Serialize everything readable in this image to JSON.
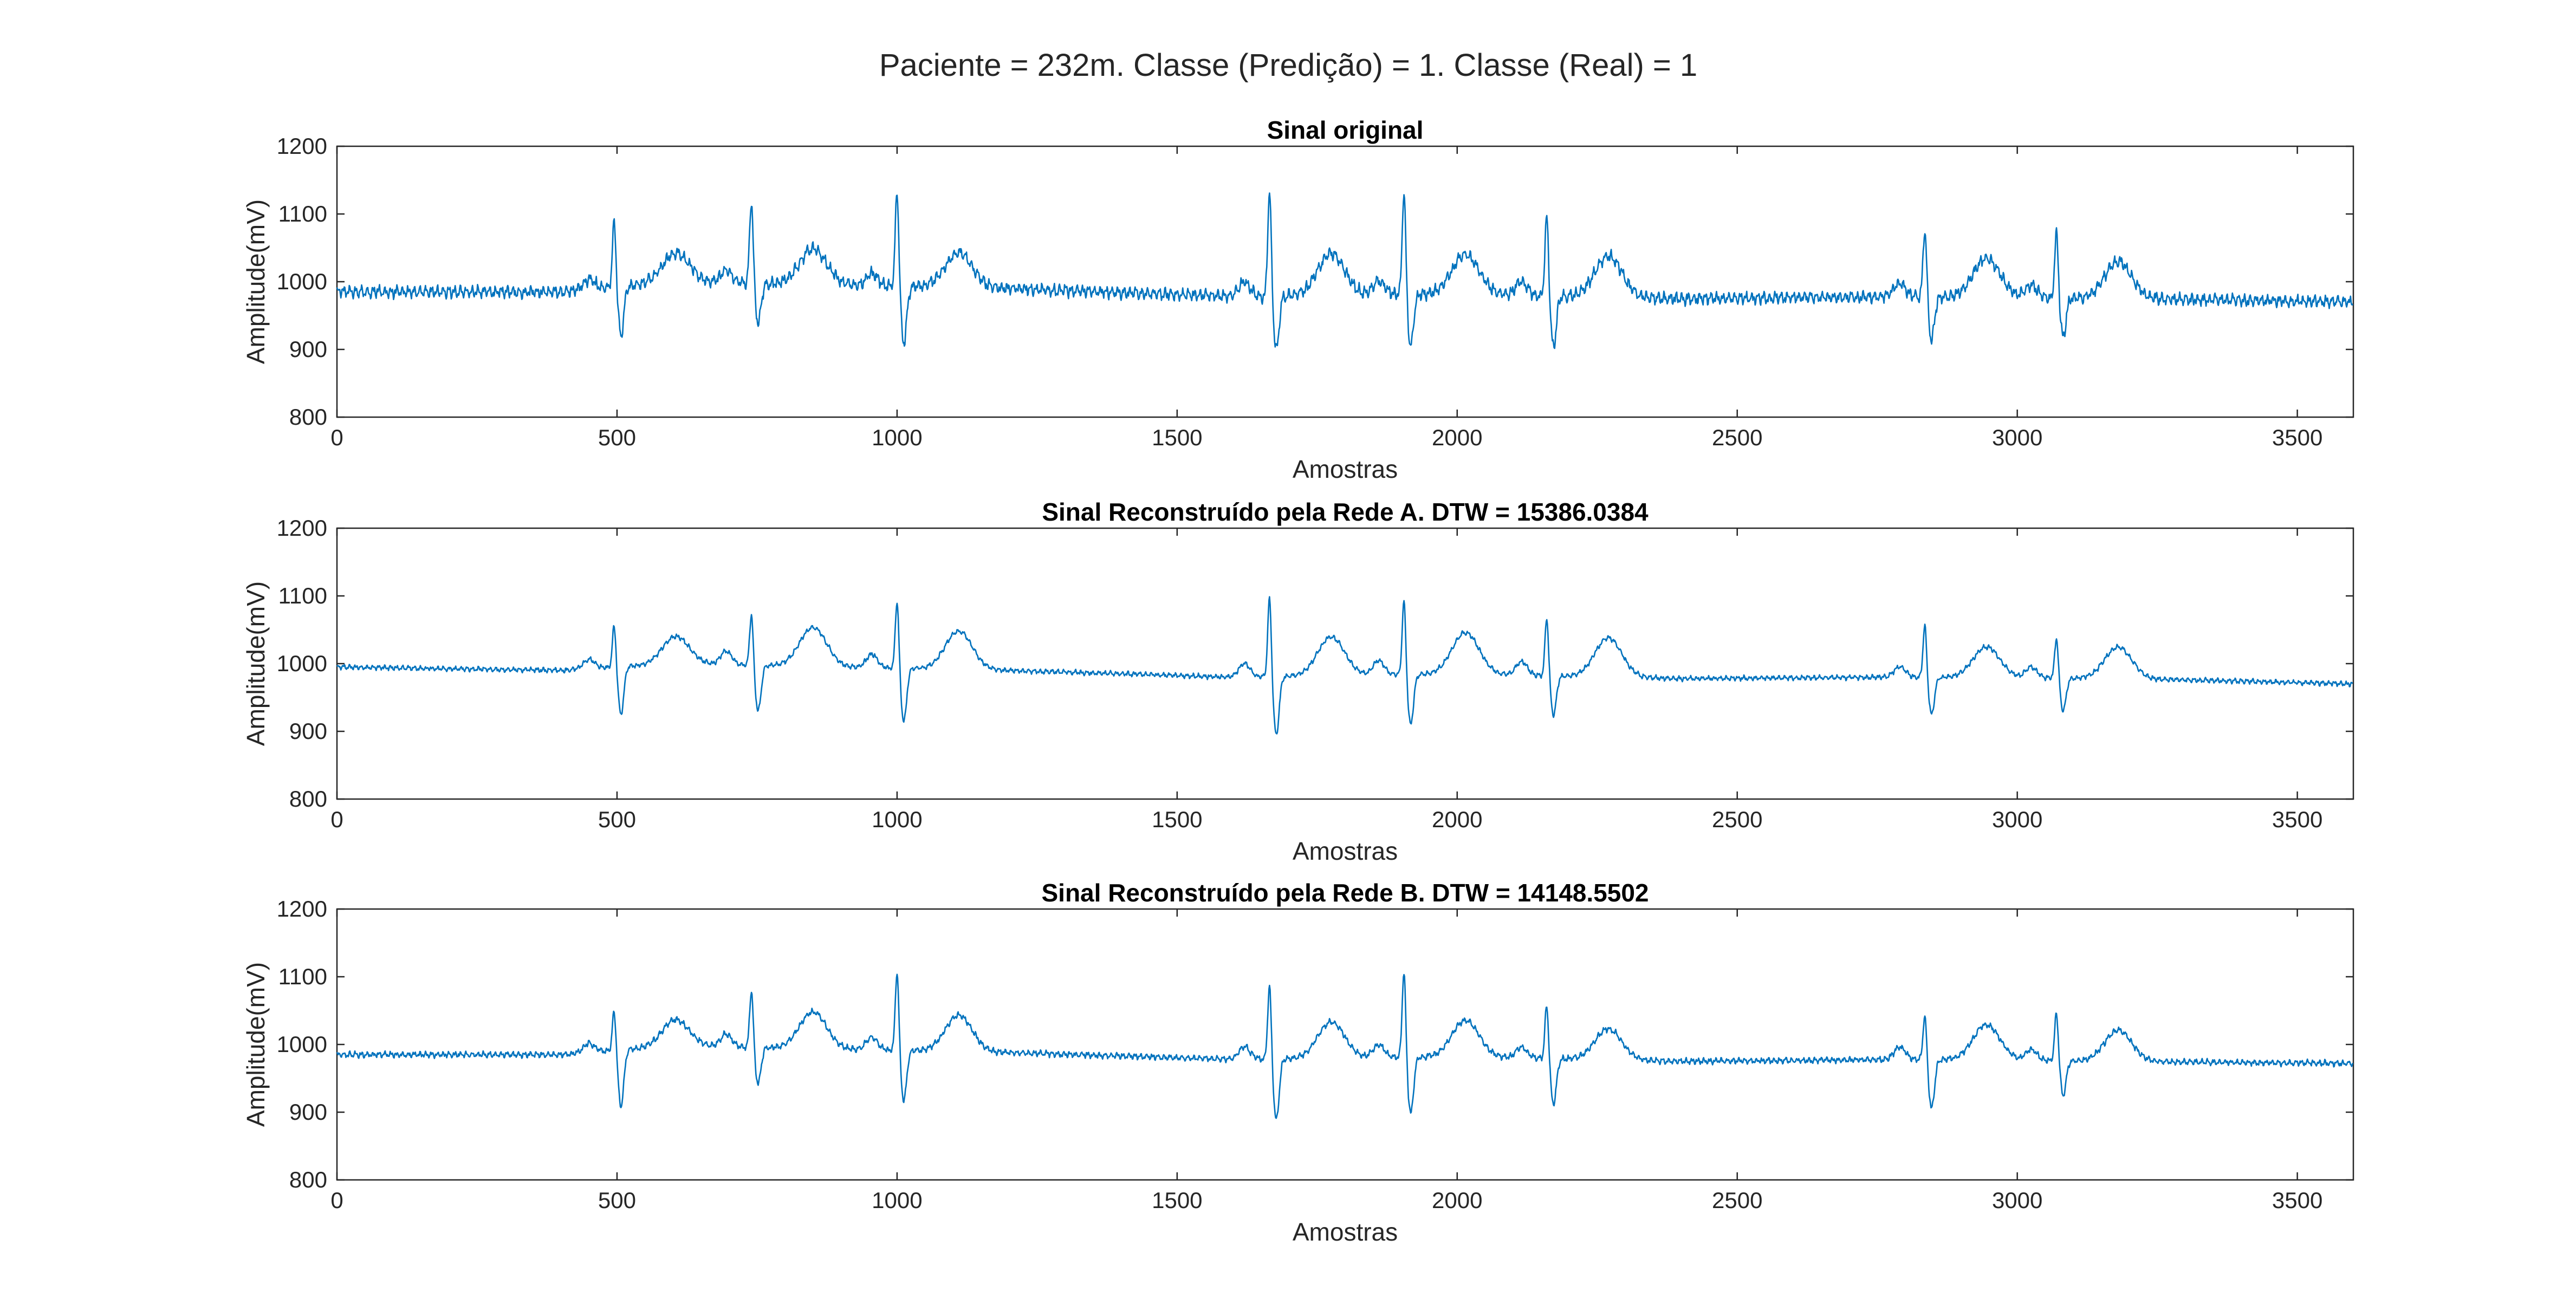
{
  "figure": {
    "suptitle": "Paciente = 232m. Classe (Predição) = 1. Classe (Real) = 1",
    "line_color": "#0072BD"
  },
  "chart_data": [
    {
      "type": "line",
      "title": "Sinal original",
      "xlabel": "Amostras",
      "ylabel": "Amplitude(mV)",
      "xlim": [
        0,
        3600
      ],
      "ylim": [
        800,
        1200
      ],
      "xticks": [
        0,
        500,
        1000,
        1500,
        2000,
        2500,
        3000,
        3500
      ],
      "yticks": [
        800,
        900,
        1000,
        1100,
        1200
      ],
      "grid": false,
      "baseline": [
        [
          0,
          985
        ],
        [
          400,
          985
        ],
        [
          600,
          1000
        ],
        [
          1200,
          990
        ],
        [
          1600,
          978
        ],
        [
          2000,
          982
        ],
        [
          2400,
          975
        ],
        [
          2800,
          978
        ],
        [
          3200,
          975
        ],
        [
          3600,
          970
        ]
      ],
      "beats": [
        {
          "x": 495,
          "peak": 1090,
          "dip": 920,
          "twave": 1035
        },
        {
          "x": 740,
          "peak": 1120,
          "dip": 940,
          "twave": 1050
        },
        {
          "x": 1000,
          "peak": 1135,
          "dip": 910,
          "twave": 1045
        },
        {
          "x": 1665,
          "peak": 1135,
          "dip": 900,
          "twave": 1040
        },
        {
          "x": 1905,
          "peak": 1135,
          "dip": 905,
          "twave": 1040
        },
        {
          "x": 2160,
          "peak": 1100,
          "dip": 905,
          "twave": 1040
        },
        {
          "x": 2835,
          "peak": 1080,
          "dip": 915,
          "twave": 1035
        },
        {
          "x": 3070,
          "peak": 1075,
          "dip": 920,
          "twave": 1030
        }
      ],
      "noise": 10,
      "series": [
        {
          "values": []
        }
      ]
    },
    {
      "type": "line",
      "title": "Sinal Reconstruído pela Rede A. DTW = 15386.0384",
      "xlabel": "Amostras",
      "ylabel": "Amplitude(mV)",
      "xlim": [
        0,
        3600
      ],
      "ylim": [
        800,
        1200
      ],
      "xticks": [
        0,
        500,
        1000,
        1500,
        2000,
        2500,
        3000,
        3500
      ],
      "yticks": [
        800,
        900,
        1000,
        1100,
        1200
      ],
      "grid": false,
      "baseline": [
        [
          0,
          995
        ],
        [
          400,
          990
        ],
        [
          600,
          1000
        ],
        [
          1200,
          990
        ],
        [
          1600,
          980
        ],
        [
          2000,
          985
        ],
        [
          2400,
          978
        ],
        [
          2800,
          980
        ],
        [
          3200,
          978
        ],
        [
          3600,
          970
        ]
      ],
      "beats": [
        {
          "x": 495,
          "peak": 1058,
          "dip": 925,
          "twave": 1035
        },
        {
          "x": 740,
          "peak": 1075,
          "dip": 930,
          "twave": 1055
        },
        {
          "x": 1000,
          "peak": 1095,
          "dip": 915,
          "twave": 1050
        },
        {
          "x": 1665,
          "peak": 1100,
          "dip": 895,
          "twave": 1038
        },
        {
          "x": 1905,
          "peak": 1095,
          "dip": 910,
          "twave": 1045
        },
        {
          "x": 2160,
          "peak": 1070,
          "dip": 925,
          "twave": 1040
        },
        {
          "x": 2835,
          "peak": 1058,
          "dip": 925,
          "twave": 1025
        },
        {
          "x": 3070,
          "peak": 1040,
          "dip": 930,
          "twave": 1025
        }
      ],
      "noise": 4,
      "series": [
        {
          "values": []
        }
      ]
    },
    {
      "type": "line",
      "title": "Sinal Reconstruído pela Rede B. DTW = 14148.5502",
      "xlabel": "Amostras",
      "ylabel": "Amplitude(mV)",
      "xlim": [
        0,
        3600
      ],
      "ylim": [
        800,
        1200
      ],
      "xticks": [
        0,
        500,
        1000,
        1500,
        2000,
        2500,
        3000,
        3500
      ],
      "yticks": [
        800,
        900,
        1000,
        1100,
        1200
      ],
      "grid": false,
      "baseline": [
        [
          0,
          985
        ],
        [
          400,
          985
        ],
        [
          600,
          998
        ],
        [
          1200,
          988
        ],
        [
          1600,
          978
        ],
        [
          2000,
          982
        ],
        [
          2400,
          975
        ],
        [
          2800,
          978
        ],
        [
          3200,
          975
        ],
        [
          3600,
          972
        ]
      ],
      "beats": [
        {
          "x": 495,
          "peak": 1052,
          "dip": 908,
          "twave": 1030
        },
        {
          "x": 740,
          "peak": 1082,
          "dip": 942,
          "twave": 1050
        },
        {
          "x": 1000,
          "peak": 1110,
          "dip": 918,
          "twave": 1045
        },
        {
          "x": 1665,
          "peak": 1090,
          "dip": 888,
          "twave": 1032
        },
        {
          "x": 1905,
          "peak": 1110,
          "dip": 898,
          "twave": 1035
        },
        {
          "x": 2160,
          "peak": 1060,
          "dip": 912,
          "twave": 1025
        },
        {
          "x": 2835,
          "peak": 1045,
          "dip": 905,
          "twave": 1030
        },
        {
          "x": 3070,
          "peak": 1048,
          "dip": 925,
          "twave": 1022
        }
      ],
      "noise": 5,
      "series": [
        {
          "values": []
        }
      ]
    }
  ]
}
